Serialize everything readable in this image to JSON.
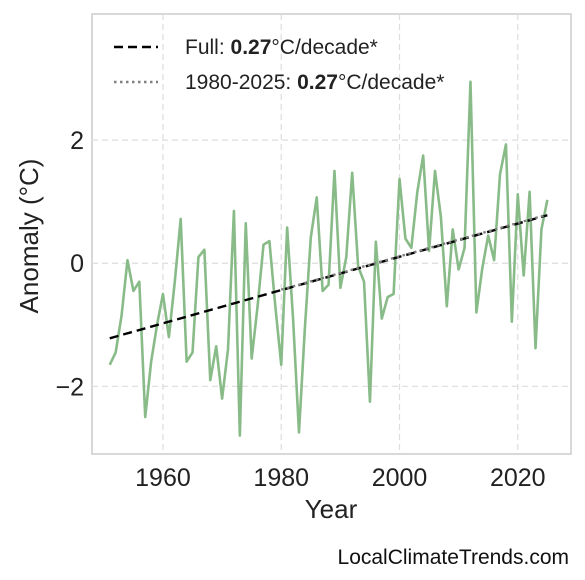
{
  "chart_data": {
    "type": "line",
    "xlabel": "Year",
    "ylabel": "Anomaly (°C)",
    "xlim": [
      1948,
      2029
    ],
    "ylim": [
      -3.1,
      4.05
    ],
    "xticks": [
      1960,
      1980,
      2000,
      2020
    ],
    "yticks": [
      -2,
      0,
      2
    ],
    "ytick_labels": [
      "−2",
      "0",
      "2"
    ],
    "grid": true,
    "legend_position": "top-left",
    "series": [
      {
        "style": "solid",
        "color": "#88bb88",
        "x": [
          1951,
          1952,
          1953,
          1954,
          1955,
          1956,
          1957,
          1958,
          1959,
          1960,
          1961,
          1962,
          1963,
          1964,
          1965,
          1966,
          1967,
          1968,
          1969,
          1970,
          1971,
          1972,
          1973,
          1974,
          1975,
          1976,
          1977,
          1978,
          1979,
          1980,
          1981,
          1982,
          1983,
          1984,
          1985,
          1986,
          1987,
          1988,
          1989,
          1990,
          1991,
          1992,
          1993,
          1994,
          1995,
          1996,
          1997,
          1998,
          1999,
          2000,
          2001,
          2002,
          2003,
          2004,
          2005,
          2006,
          2007,
          2008,
          2009,
          2010,
          2011,
          2012,
          2013,
          2014,
          2015,
          2016,
          2017,
          2018,
          2019,
          2020,
          2021,
          2022,
          2023,
          2024,
          2025
        ],
        "y": [
          -1.65,
          -1.45,
          -0.85,
          0.05,
          -0.45,
          -0.3,
          -2.5,
          -1.6,
          -1.0,
          -0.5,
          -1.2,
          -0.3,
          0.72,
          -1.6,
          -1.45,
          0.1,
          0.22,
          -1.9,
          -1.35,
          -2.2,
          -1.4,
          0.85,
          -2.8,
          0.65,
          -1.55,
          -0.7,
          0.3,
          0.36,
          -0.7,
          -1.65,
          0.58,
          -0.9,
          -2.75,
          -1.05,
          0.42,
          1.07,
          -0.45,
          -0.35,
          1.5,
          -0.4,
          0.1,
          1.47,
          -0.05,
          -0.3,
          -2.25,
          0.35,
          -0.9,
          -0.55,
          -0.5,
          1.37,
          0.4,
          0.25,
          1.15,
          1.75,
          0.2,
          1.5,
          0.75,
          -0.7,
          0.55,
          -0.1,
          0.25,
          2.95,
          -0.8,
          -0.08,
          0.45,
          0.05,
          1.45,
          1.93,
          -0.95,
          1.12,
          -0.2,
          1.16,
          -1.38,
          0.55,
          1.03
        ]
      },
      {
        "name": "Full",
        "style": "dashed",
        "color": "#000000",
        "x": [
          1951,
          2025
        ],
        "y": [
          -1.22,
          0.78
        ]
      },
      {
        "name": "1980-2025",
        "style": "dotted",
        "color": "#808080",
        "x": [
          1980,
          2025
        ],
        "y": [
          -0.43,
          0.79
        ]
      }
    ],
    "legend": [
      {
        "prefix": "Full: ",
        "value": "0.27",
        "suffix": "°C/decade*"
      },
      {
        "prefix": "1980-2025: ",
        "value": "0.27",
        "suffix": "°C/decade*"
      }
    ]
  },
  "watermark": "LocalClimateTrends.com"
}
